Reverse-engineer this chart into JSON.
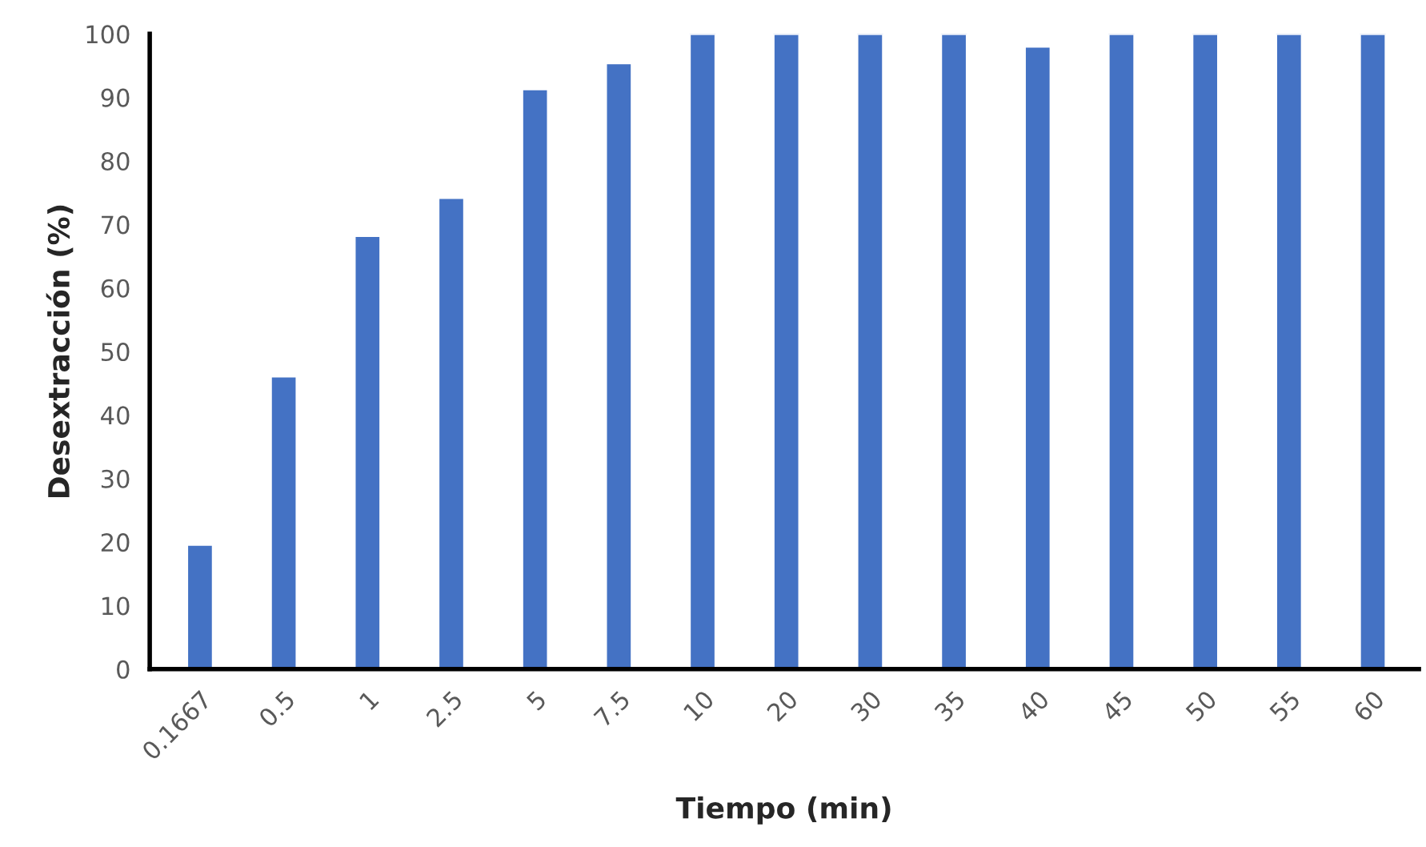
{
  "chart_data": {
    "type": "bar",
    "xlabel": "Tiempo (min)",
    "ylabel": "Desextracción (%)",
    "categories": [
      "0.1667",
      "0.5",
      "1",
      "2.5",
      "5",
      "7.5",
      "10",
      "20",
      "30",
      "35",
      "40",
      "45",
      "50",
      "55",
      "60"
    ],
    "values": [
      19.6,
      46.1,
      68.2,
      74.2,
      91.3,
      95.4,
      100,
      100,
      100,
      100,
      98.0,
      100,
      100,
      100,
      100
    ],
    "color": "#4472c4",
    "ylim": [
      0,
      100
    ],
    "yticks": [
      0,
      10,
      20,
      30,
      40,
      50,
      60,
      70,
      80,
      90,
      100
    ],
    "grid": false
  }
}
